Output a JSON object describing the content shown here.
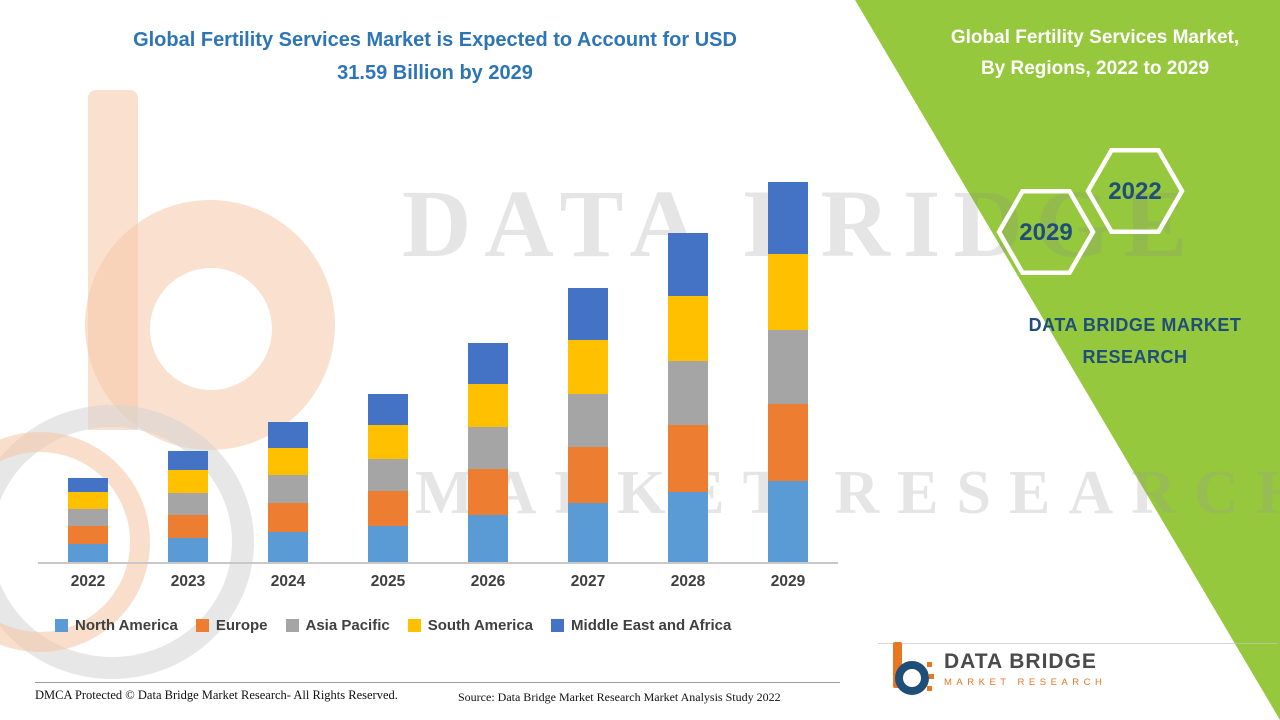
{
  "title": {
    "line1": "Global Fertility Services Market is Expected to Account for USD",
    "line2": "31.59 Billion by 2029"
  },
  "right_panel": {
    "title_line1": "Global Fertility Services Market,",
    "title_line2": "By Regions, 2022 to 2029",
    "hexagon_front_label": "2022",
    "hexagon_back_label": "2029",
    "brand_line1": "DATA BRIDGE MARKET",
    "brand_line2": "RESEARCH",
    "background_color": "#95c83c"
  },
  "watermark": {
    "line1": "DATA BRIDGE",
    "line2": "MARKET RESEARCH"
  },
  "footer": {
    "dmca": "DMCA Protected © Data Bridge Market Research- All Rights Reserved.",
    "source": "Source: Data Bridge Market Research Market Analysis Study 2022"
  },
  "logo": {
    "name": "DATA BRIDGE",
    "subtitle": "MARKET RESEARCH"
  },
  "chart_data": {
    "type": "bar",
    "stacked": true,
    "title": "Global Fertility Services Market is Expected to Account for USD 31.59 Billion by 2029",
    "categories": [
      "2022",
      "2023",
      "2024",
      "2025",
      "2026",
      "2027",
      "2028",
      "2029"
    ],
    "series": [
      {
        "name": "North America",
        "color": "#5b9bd5",
        "values": [
          1.5,
          2.0,
          2.5,
          3.0,
          3.9,
          4.9,
          5.8,
          6.7
        ]
      },
      {
        "name": "Europe",
        "color": "#ed7d31",
        "values": [
          1.5,
          1.9,
          2.4,
          2.9,
          3.8,
          4.7,
          5.6,
          6.4
        ]
      },
      {
        "name": "Asia Pacific",
        "color": "#a5a5a5",
        "values": [
          1.4,
          1.8,
          2.3,
          2.7,
          3.5,
          4.4,
          5.3,
          6.2
        ]
      },
      {
        "name": "South America",
        "color": "#ffc000",
        "values": [
          1.4,
          1.9,
          2.3,
          2.8,
          3.6,
          4.5,
          5.4,
          6.3
        ]
      },
      {
        "name": "Middle East and Africa",
        "color": "#4472c4",
        "values": [
          1.2,
          1.6,
          2.1,
          2.6,
          3.4,
          4.3,
          5.2,
          5.99
        ]
      }
    ],
    "estimated_totals_usd_billion": [
      7.0,
      9.2,
      11.6,
      14.0,
      18.2,
      22.8,
      27.3,
      31.59
    ],
    "unit": "USD Billion",
    "xlabel": "",
    "ylabel": "",
    "ylim": [
      0,
      31.59
    ],
    "grid": false,
    "legend_position": "bottom"
  }
}
